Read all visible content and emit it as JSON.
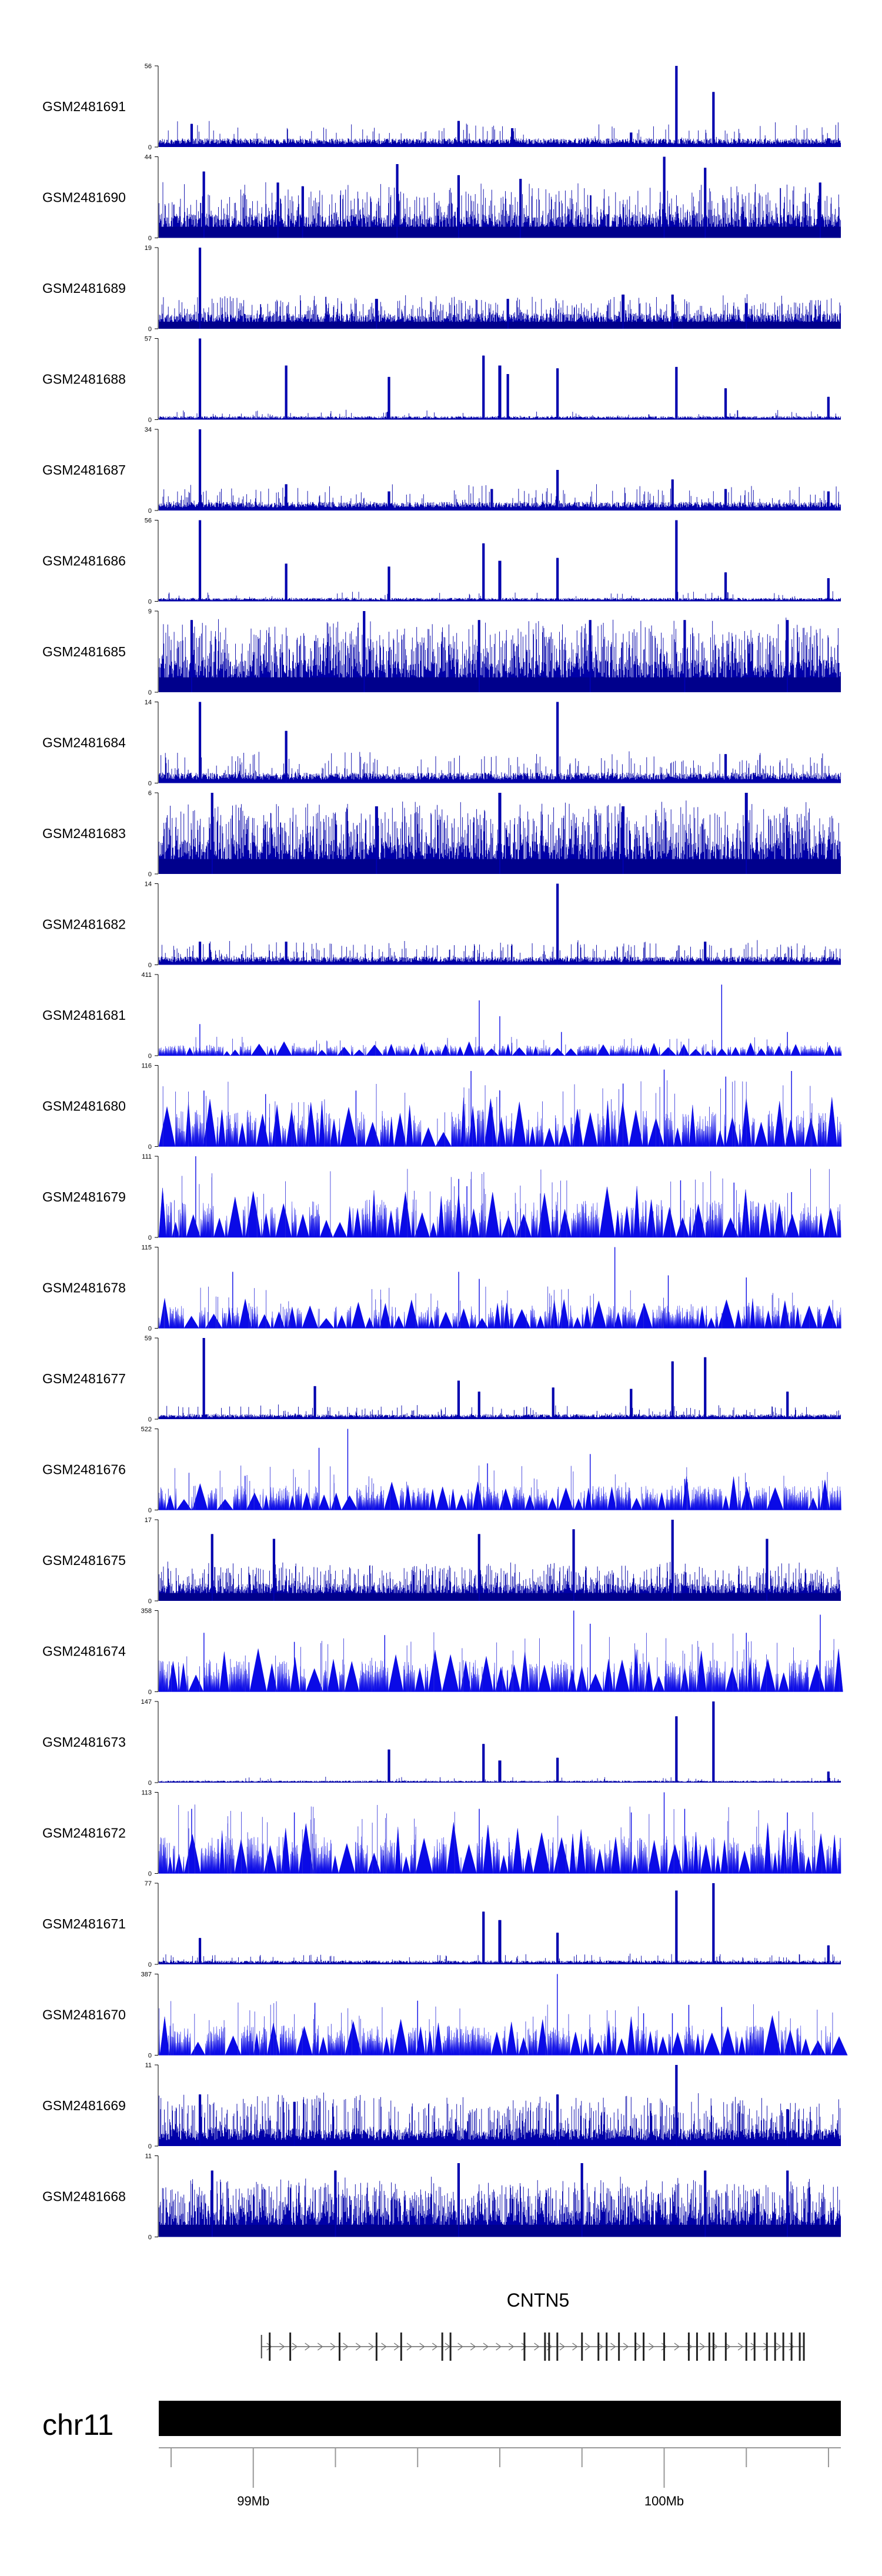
{
  "chart_data": {
    "type": "area",
    "title": "",
    "chromosome": "chr11",
    "gene": "CNTN5",
    "genome_axis": {
      "unit": "Mb",
      "range": [
        98.77,
        100.43
      ],
      "labeled_ticks": [
        {
          "value": 99,
          "label": "99Mb"
        },
        {
          "value": 100,
          "label": "100Mb"
        }
      ],
      "minor_ticks": [
        98.8,
        99.2,
        99.4,
        99.6,
        99.8,
        100.2,
        100.4
      ]
    },
    "gene_model": {
      "name": "CNTN5",
      "start": 99.02,
      "end": 100.34,
      "strand": "+",
      "exons": [
        99.04,
        99.09,
        99.21,
        99.3,
        99.36,
        99.46,
        99.48,
        99.66,
        99.71,
        99.72,
        99.74,
        99.8,
        99.84,
        99.86,
        99.89,
        99.93,
        99.95,
        100.0,
        100.06,
        100.08,
        100.11,
        100.12,
        100.15,
        100.2,
        100.22,
        100.25,
        100.27,
        100.29,
        100.31,
        100.33,
        100.34
      ]
    },
    "tracks": [
      {
        "name": "GSM2481691",
        "ymax": 56,
        "style": "sparse",
        "base": 5,
        "noise": 0.06,
        "peaks": [
          [
            98.85,
            16
          ],
          [
            99.5,
            18
          ],
          [
            99.63,
            13
          ],
          [
            99.92,
            10
          ],
          [
            100.03,
            56
          ],
          [
            100.12,
            38
          ],
          [
            100.4,
            6
          ]
        ]
      },
      {
        "name": "GSM2481690",
        "ymax": 44,
        "style": "dense",
        "base": 11,
        "noise": 0.35,
        "peaks": [
          [
            98.88,
            36
          ],
          [
            99.06,
            30
          ],
          [
            99.12,
            28
          ],
          [
            99.35,
            40
          ],
          [
            99.5,
            34
          ],
          [
            99.65,
            32
          ],
          [
            100.0,
            44
          ],
          [
            100.1,
            38
          ],
          [
            100.38,
            30
          ]
        ]
      },
      {
        "name": "GSM2481689",
        "ymax": 19,
        "style": "dense",
        "base": 3,
        "noise": 0.3,
        "peaks": [
          [
            98.87,
            19
          ],
          [
            99.3,
            7
          ],
          [
            99.62,
            7
          ],
          [
            99.9,
            8
          ],
          [
            100.02,
            8
          ],
          [
            100.2,
            6
          ]
        ]
      },
      {
        "name": "GSM2481688",
        "ymax": 57,
        "style": "sparse",
        "base": 2,
        "noise": 0.05,
        "peaks": [
          [
            98.87,
            57
          ],
          [
            99.08,
            38
          ],
          [
            99.33,
            30
          ],
          [
            99.56,
            45
          ],
          [
            99.6,
            38
          ],
          [
            99.62,
            32
          ],
          [
            99.74,
            36
          ],
          [
            100.03,
            37
          ],
          [
            100.15,
            22
          ],
          [
            100.4,
            16
          ]
        ]
      },
      {
        "name": "GSM2481687",
        "ymax": 34,
        "style": "sparse",
        "base": 3,
        "noise": 0.12,
        "peaks": [
          [
            98.87,
            34
          ],
          [
            99.08,
            11
          ],
          [
            99.33,
            8
          ],
          [
            99.58,
            9
          ],
          [
            99.74,
            17
          ],
          [
            100.02,
            13
          ],
          [
            100.15,
            9
          ],
          [
            100.4,
            8
          ]
        ]
      },
      {
        "name": "GSM2481686",
        "ymax": 56,
        "style": "sparse",
        "base": 2,
        "noise": 0.05,
        "peaks": [
          [
            98.87,
            56
          ],
          [
            99.08,
            26
          ],
          [
            99.33,
            24
          ],
          [
            99.56,
            40
          ],
          [
            99.6,
            28
          ],
          [
            99.74,
            30
          ],
          [
            100.03,
            56
          ],
          [
            100.15,
            20
          ],
          [
            100.4,
            16
          ]
        ]
      },
      {
        "name": "GSM2481685",
        "ymax": 9,
        "style": "dense",
        "base": 3,
        "noise": 0.5,
        "peaks": [
          [
            98.85,
            8
          ],
          [
            99.27,
            9
          ],
          [
            99.55,
            8
          ],
          [
            99.82,
            8
          ],
          [
            100.05,
            8
          ],
          [
            100.3,
            8
          ]
        ]
      },
      {
        "name": "GSM2481684",
        "ymax": 14,
        "style": "sparse",
        "base": 1.5,
        "noise": 0.15,
        "peaks": [
          [
            98.87,
            14
          ],
          [
            99.08,
            9
          ],
          [
            99.74,
            14
          ],
          [
            100.15,
            5
          ]
        ]
      },
      {
        "name": "GSM2481683",
        "ymax": 6,
        "style": "dense",
        "base": 2,
        "noise": 0.5,
        "peaks": [
          [
            98.9,
            6
          ],
          [
            99.3,
            5
          ],
          [
            99.6,
            6
          ],
          [
            99.9,
            5
          ],
          [
            100.2,
            6
          ]
        ]
      },
      {
        "name": "GSM2481682",
        "ymax": 14,
        "style": "sparse",
        "base": 1.2,
        "noise": 0.15,
        "peaks": [
          [
            98.87,
            4
          ],
          [
            99.08,
            4
          ],
          [
            99.74,
            14
          ],
          [
            100.1,
            4
          ]
        ]
      },
      {
        "name": "GSM2481681",
        "ymax": 411,
        "style": "spiky",
        "base": 40,
        "noise": 0.3,
        "peaks": [
          [
            98.87,
            160
          ],
          [
            99.55,
            280
          ],
          [
            99.6,
            200
          ],
          [
            99.75,
            120
          ],
          [
            100.14,
            360
          ],
          [
            100.3,
            120
          ]
        ]
      },
      {
        "name": "GSM2481680",
        "ymax": 116,
        "style": "spiky",
        "base": 40,
        "noise": 0.45,
        "peaks": [
          [
            98.88,
            80
          ],
          [
            99.03,
            75
          ],
          [
            99.25,
            80
          ],
          [
            99.53,
            108
          ],
          [
            99.6,
            80
          ],
          [
            99.9,
            90
          ],
          [
            100.0,
            110
          ],
          [
            100.15,
            100
          ],
          [
            100.31,
            108
          ]
        ]
      },
      {
        "name": "GSM2481679",
        "ymax": 111,
        "style": "spiky",
        "base": 40,
        "noise": 0.3,
        "peaks": [
          [
            98.78,
            60
          ],
          [
            98.86,
            111
          ],
          [
            99.5,
            80
          ],
          [
            99.52,
            70
          ],
          [
            100.04,
            78
          ],
          [
            100.17,
            75
          ],
          [
            100.31,
            62
          ]
        ]
      },
      {
        "name": "GSM2481678",
        "ymax": 115,
        "style": "spiky",
        "base": 25,
        "noise": 0.4,
        "peaks": [
          [
            98.95,
            80
          ],
          [
            99.5,
            80
          ],
          [
            99.55,
            70
          ],
          [
            99.88,
            115
          ],
          [
            100.01,
            75
          ],
          [
            100.2,
            72
          ]
        ]
      },
      {
        "name": "GSM2481677",
        "ymax": 59,
        "style": "sparse",
        "base": 3,
        "noise": 0.1,
        "peaks": [
          [
            98.88,
            59
          ],
          [
            99.15,
            24
          ],
          [
            99.5,
            28
          ],
          [
            99.55,
            20
          ],
          [
            99.73,
            23
          ],
          [
            99.92,
            22
          ],
          [
            100.02,
            42
          ],
          [
            100.1,
            45
          ],
          [
            100.3,
            20
          ]
        ]
      },
      {
        "name": "GSM2481676",
        "ymax": 522,
        "style": "spiky",
        "base": 120,
        "noise": 0.35,
        "peaks": [
          [
            98.98,
            220
          ],
          [
            99.16,
            400
          ],
          [
            99.23,
            522
          ],
          [
            99.57,
            300
          ],
          [
            99.82,
            360
          ],
          [
            100.05,
            200
          ],
          [
            100.2,
            180
          ]
        ]
      },
      {
        "name": "GSM2481675",
        "ymax": 17,
        "style": "dense",
        "base": 3,
        "noise": 0.4,
        "peaks": [
          [
            98.9,
            14
          ],
          [
            99.05,
            13
          ],
          [
            99.55,
            14
          ],
          [
            99.78,
            15
          ],
          [
            100.02,
            17
          ],
          [
            100.25,
            13
          ]
        ]
      },
      {
        "name": "GSM2481674",
        "ymax": 358,
        "style": "spiky",
        "base": 110,
        "noise": 0.35,
        "peaks": [
          [
            98.88,
            260
          ],
          [
            99.1,
            220
          ],
          [
            99.32,
            250
          ],
          [
            99.78,
            358
          ],
          [
            99.82,
            300
          ],
          [
            100.2,
            260
          ],
          [
            100.38,
            340
          ]
        ]
      },
      {
        "name": "GSM2481673",
        "ymax": 147,
        "style": "sparse",
        "base": 3,
        "noise": 0.05,
        "peaks": [
          [
            99.33,
            60
          ],
          [
            99.56,
            70
          ],
          [
            99.6,
            40
          ],
          [
            99.74,
            45
          ],
          [
            100.03,
            120
          ],
          [
            100.12,
            147
          ],
          [
            100.4,
            20
          ]
        ]
      },
      {
        "name": "GSM2481672",
        "ymax": 113,
        "style": "spiky",
        "base": 40,
        "noise": 0.45,
        "peaks": [
          [
            98.85,
            90
          ],
          [
            99.1,
            85
          ],
          [
            99.55,
            90
          ],
          [
            99.92,
            85
          ],
          [
            100.0,
            113
          ],
          [
            100.05,
            90
          ],
          [
            100.3,
            85
          ]
        ]
      },
      {
        "name": "GSM2481671",
        "ymax": 77,
        "style": "sparse",
        "base": 3,
        "noise": 0.08,
        "peaks": [
          [
            98.87,
            25
          ],
          [
            99.56,
            50
          ],
          [
            99.6,
            42
          ],
          [
            99.74,
            30
          ],
          [
            100.03,
            70
          ],
          [
            100.12,
            77
          ],
          [
            100.4,
            18
          ]
        ]
      },
      {
        "name": "GSM2481670",
        "ymax": 387,
        "style": "spiky",
        "base": 110,
        "noise": 0.35,
        "peaks": [
          [
            99.15,
            250
          ],
          [
            99.4,
            260
          ],
          [
            99.74,
            387
          ],
          [
            99.95,
            200
          ],
          [
            100.02,
            200
          ],
          [
            100.06,
            240
          ],
          [
            100.14,
            230
          ]
        ]
      },
      {
        "name": "GSM2481669",
        "ymax": 11,
        "style": "sparse",
        "base": 2,
        "noise": 0.35,
        "peaks": [
          [
            98.87,
            7
          ],
          [
            99.1,
            6
          ],
          [
            99.74,
            7
          ],
          [
            100.03,
            11
          ],
          [
            100.3,
            5
          ]
        ]
      },
      {
        "name": "GSM2481668",
        "ymax": 11,
        "style": "dense",
        "base": 3,
        "noise": 0.55,
        "peaks": [
          [
            98.9,
            9
          ],
          [
            99.2,
            9
          ],
          [
            99.5,
            10
          ],
          [
            99.8,
            10
          ],
          [
            100.1,
            9
          ],
          [
            100.3,
            9
          ]
        ]
      }
    ]
  }
}
